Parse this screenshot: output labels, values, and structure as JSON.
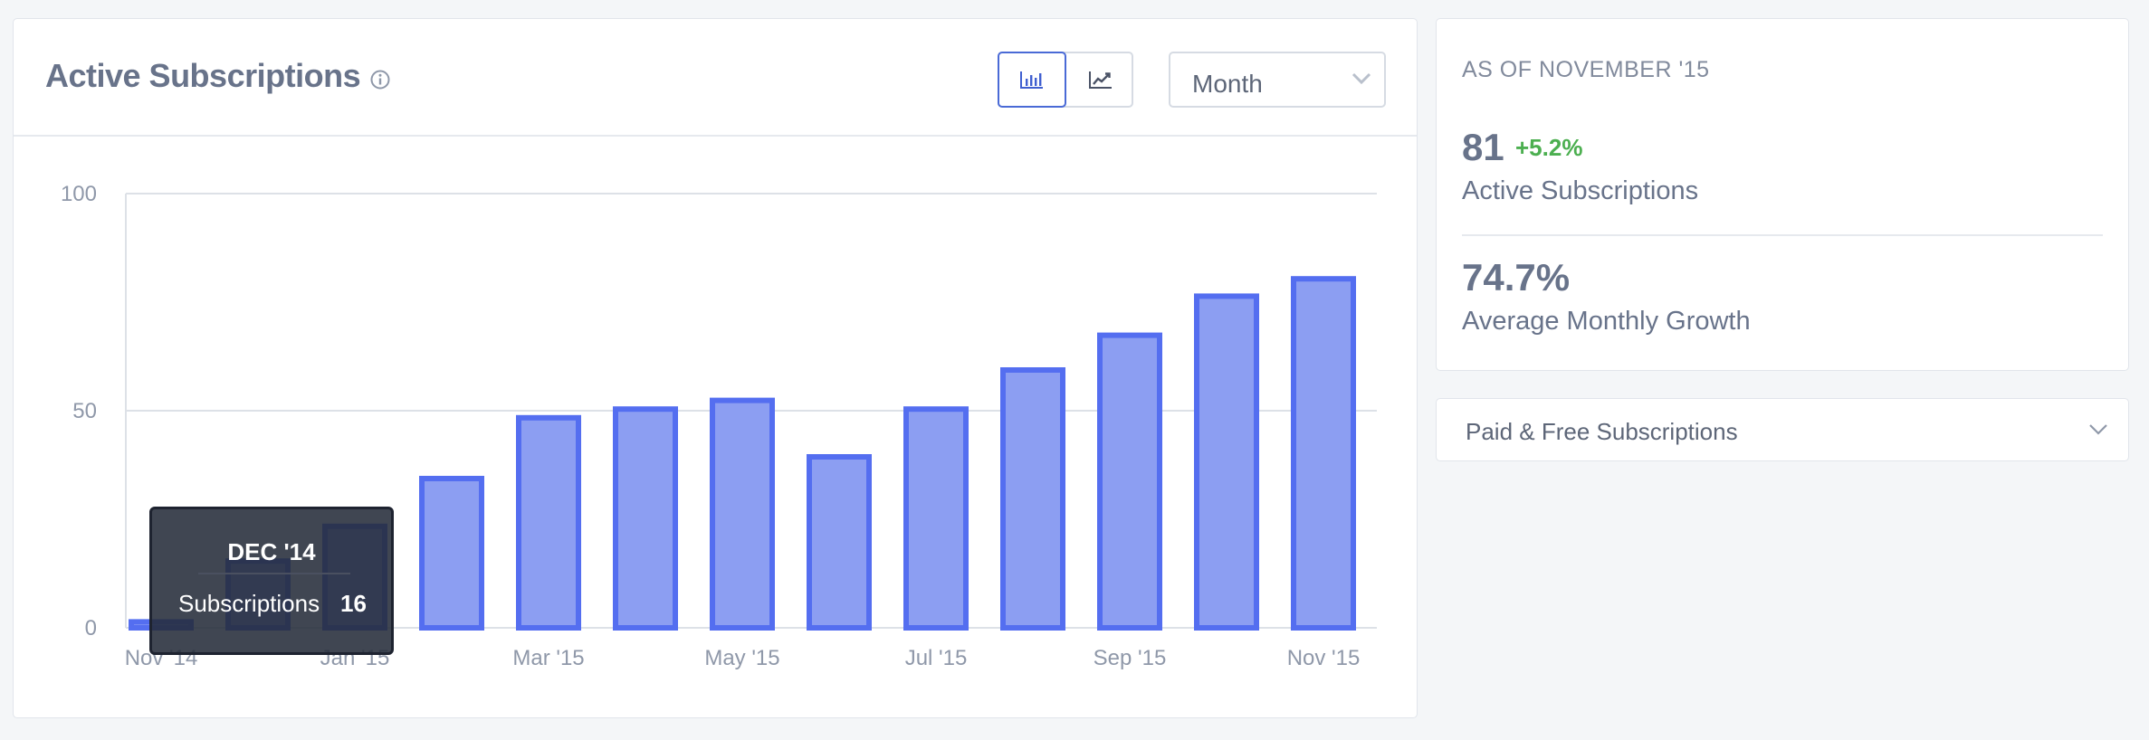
{
  "chart_card": {
    "title": "Active Subscriptions",
    "period_select": {
      "value": "Month"
    }
  },
  "tooltip": {
    "title": "DEC '14",
    "label": "Subscriptions",
    "value": "16"
  },
  "stats": {
    "as_of": "AS OF NOVEMBER '15",
    "active_value": "81",
    "active_change": "+5.2%",
    "active_label": "Active Subscriptions",
    "growth_value": "74.7%",
    "growth_label": "Average Monthly Growth"
  },
  "breakdown": {
    "label": "Paid & Free Subscriptions"
  },
  "colors": {
    "bar_fill": "#8c9ef2",
    "bar_stroke": "#546ef0",
    "positive": "#4caf50",
    "grid": "#dde1e7"
  },
  "chart_data": {
    "type": "bar",
    "categories": [
      "Nov '14",
      "Dec '14",
      "Jan '15",
      "Feb '15",
      "Mar '15",
      "Apr '15",
      "May '15",
      "Jun '15",
      "Jul '15",
      "Aug '15",
      "Sep '15",
      "Oct '15",
      "Nov '15"
    ],
    "tick_labels": [
      "Nov '14",
      "Jan '15",
      "Mar '15",
      "May '15",
      "Jul '15",
      "Sep '15",
      "Nov '15"
    ],
    "values": [
      2,
      16,
      24,
      35,
      49,
      51,
      53,
      40,
      51,
      60,
      68,
      77,
      81
    ],
    "yticks": [
      0,
      50,
      100
    ],
    "ylim": [
      0,
      100
    ],
    "grid": true,
    "title": "Active Subscriptions"
  }
}
